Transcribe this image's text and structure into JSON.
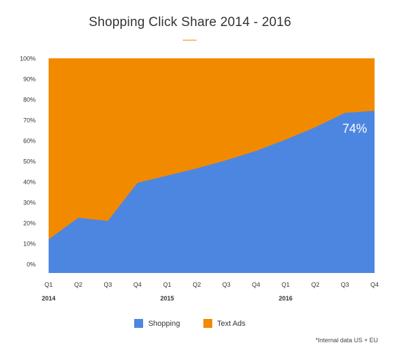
{
  "chart_data": {
    "type": "area",
    "stacked": true,
    "title": "Shopping Click Share 2014 - 2016",
    "categories": [
      "Q1",
      "Q2",
      "Q3",
      "Q4",
      "Q1",
      "Q2",
      "Q3",
      "Q4",
      "Q1",
      "Q2",
      "Q3",
      "Q4"
    ],
    "years": [
      {
        "label": "2014",
        "category_index": 0
      },
      {
        "label": "2015",
        "category_index": 4
      },
      {
        "label": "2016",
        "category_index": 8
      }
    ],
    "y_ticks": [
      "0%",
      "10%",
      "20%",
      "30%",
      "40%",
      "50%",
      "60%",
      "70%",
      "80%",
      "90%",
      "100%"
    ],
    "ylim": [
      0,
      100
    ],
    "series": [
      {
        "name": "Shopping",
        "color": "#4d86e0",
        "values": [
          12,
          22.5,
          21,
          39.5,
          43,
          46.5,
          50.5,
          55,
          60.5,
          66.5,
          73.5,
          74.5
        ]
      },
      {
        "name": "Text Ads",
        "color": "#f28a00",
        "values": [
          88,
          77.5,
          79,
          60.5,
          57,
          53.5,
          49.5,
          45,
          39.5,
          33.5,
          26.5,
          25.5
        ]
      }
    ],
    "annotation": {
      "text": "74%",
      "series": "Shopping",
      "category_index": 11
    },
    "legend": "bottom",
    "grid": false
  },
  "footnote": "*Internal data US + EU"
}
